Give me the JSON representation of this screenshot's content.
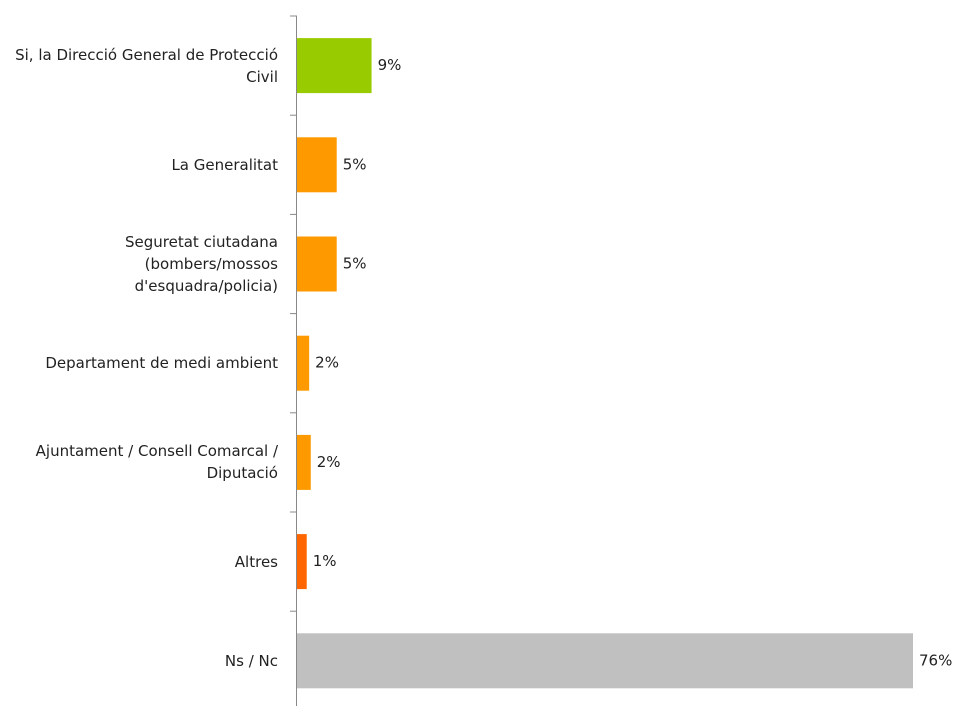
{
  "chart_data": {
    "type": "hbar",
    "categories": [
      "Si, la Direcció General de Protecció Civil",
      "La Generalitat",
      "Seguretat ciutadana (bombers/mossos d'esquadra/policia)",
      "Departament de medi ambient",
      "Ajuntament / Consell Comarcal / Diputació",
      "Altres",
      "Ns / Nc"
    ],
    "values": [
      9.2,
      4.9,
      4.9,
      1.5,
      1.7,
      1.2,
      76
    ],
    "value_labels": [
      "9%",
      "5%",
      "5%",
      "2%",
      "2%",
      "1%",
      "76%"
    ],
    "colors": [
      "#99cc00",
      "#ff9900",
      "#ff9900",
      "#ff9900",
      "#ff9900",
      "#ff6600",
      "#c0c0c0"
    ]
  }
}
